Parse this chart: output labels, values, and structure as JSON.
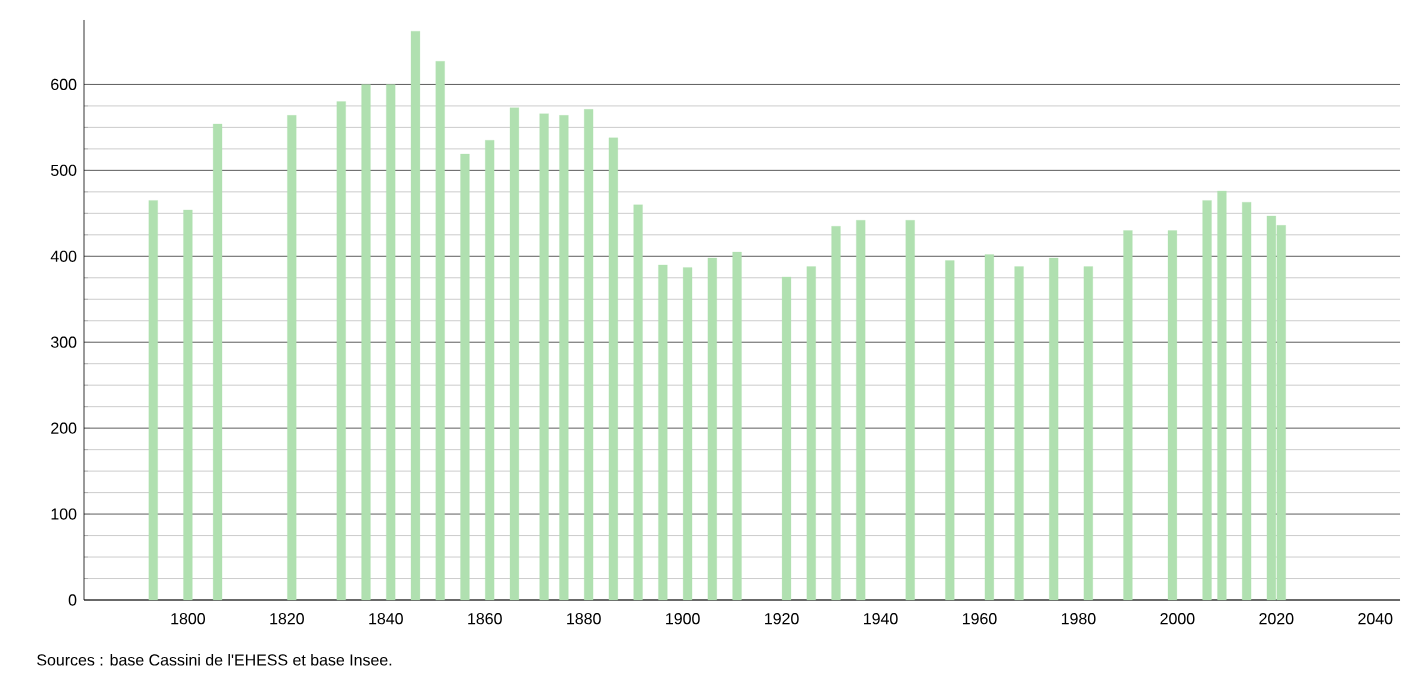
{
  "chart_data": {
    "type": "bar",
    "annotations": [
      "Sources : base Cassini de l'EHESS et base Insee."
    ],
    "x": [
      1793,
      1800,
      1806,
      1821,
      1831,
      1836,
      1841,
      1846,
      1851,
      1856,
      1861,
      1866,
      1872,
      1876,
      1881,
      1886,
      1891,
      1896,
      1901,
      1906,
      1911,
      1921,
      1926,
      1931,
      1936,
      1946,
      1954,
      1962,
      1968,
      1975,
      1982,
      1990,
      1999,
      2006,
      2009,
      2014,
      2019,
      2021
    ],
    "values": [
      465,
      454,
      554,
      564,
      580,
      600,
      600,
      662,
      627,
      519,
      535,
      573,
      566,
      564,
      571,
      538,
      460,
      390,
      387,
      398,
      405,
      376,
      388,
      435,
      442,
      442,
      395,
      402,
      388,
      398,
      388,
      430,
      430,
      465,
      476,
      463,
      447,
      436
    ],
    "color": "#b0e0b0",
    "xlim": [
      1779,
      2045
    ],
    "xticks": [
      1800,
      1820,
      1840,
      1860,
      1880,
      1900,
      1920,
      1940,
      1960,
      1980,
      2000,
      2020,
      2040
    ],
    "ylim": [
      0,
      675
    ],
    "yticks": [
      0,
      100,
      200,
      300,
      400,
      500,
      600
    ],
    "grid": "y"
  }
}
